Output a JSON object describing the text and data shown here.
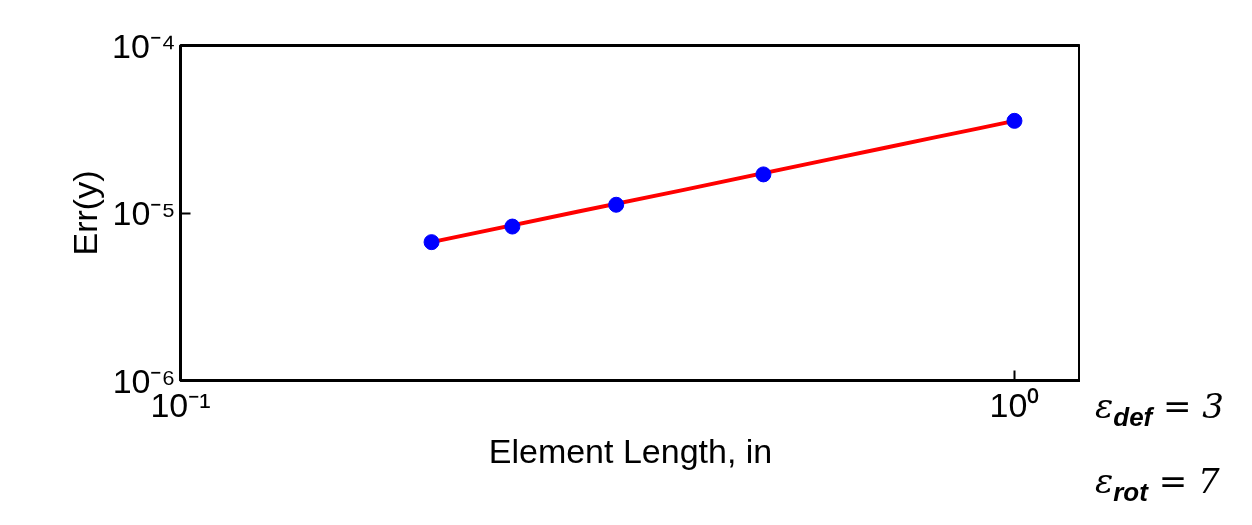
{
  "chart_data": {
    "type": "scatter",
    "xlabel": "Element Length, in",
    "ylabel": "Err(y)",
    "log": "xy",
    "grid": false,
    "marker": "circle",
    "xlim": [
      0.1,
      1.2
    ],
    "ylim": [
      1e-06,
      0.0001
    ],
    "xticks": [
      {
        "value": 0.1,
        "label": "10⁻¹"
      },
      {
        "value": 1,
        "label": "10⁰"
      }
    ],
    "yticks": [
      {
        "value": 1e-06,
        "label": "10⁻⁶"
      },
      {
        "value": 1e-05,
        "label": "10⁻⁵"
      },
      {
        "value": 0.0001,
        "label": "10⁻⁴"
      }
    ],
    "series": [
      {
        "type": "line",
        "marker": "none",
        "color": "#ff0000",
        "x": [
          0.2,
          0.3,
          0.4,
          0.6,
          0.7,
          0.8,
          0.9,
          1.0
        ],
        "values": [
          6.7e-06,
          1.02e-05,
          1.37e-05,
          2.09e-05,
          2.45e-05,
          2.82e-05,
          3.18e-05,
          3.55e-05
        ]
      },
      {
        "color": "#0000ff",
        "x": [
          0.2,
          0.25,
          0.333,
          0.5,
          1.0
        ],
        "values": [
          6.7e-06,
          8.3e-06,
          1.12e-05,
          1.7e-05,
          3.55e-05
        ]
      }
    ],
    "annotations": [
      "ε$_{def}$ = 3",
      "ε$_{rot}$ = 7"
    ]
  }
}
